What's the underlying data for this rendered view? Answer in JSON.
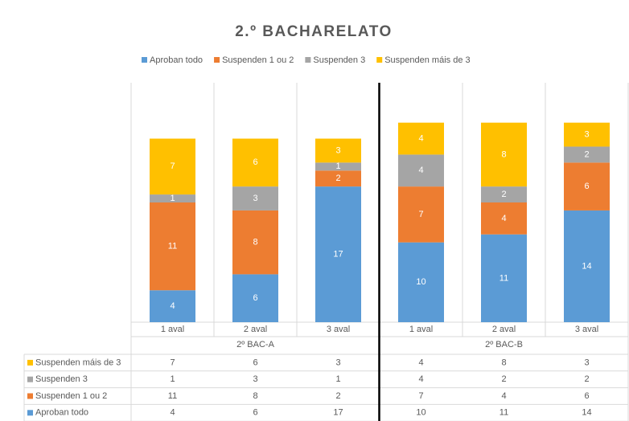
{
  "chart_data": {
    "type": "bar",
    "stacked": true,
    "title": "2.º BACHARELATO",
    "categories": [
      "1 aval",
      "2 aval",
      "3 aval",
      "1 aval",
      "2 aval",
      "3 aval"
    ],
    "groups": [
      "2º BAC-A",
      "2º BAC-B"
    ],
    "series": [
      {
        "name": "Aproban todo",
        "color": "#5b9bd5",
        "values": [
          4,
          6,
          17,
          10,
          11,
          14
        ]
      },
      {
        "name": "Suspenden 1 ou 2",
        "color": "#ed7d31",
        "values": [
          11,
          8,
          2,
          7,
          4,
          6
        ]
      },
      {
        "name": "Suspenden 3",
        "color": "#a5a5a5",
        "values": [
          1,
          3,
          1,
          4,
          2,
          2
        ]
      },
      {
        "name": "Suspenden máis de 3",
        "color": "#ffc000",
        "values": [
          7,
          6,
          3,
          4,
          8,
          3
        ]
      }
    ],
    "ylim": [
      0,
      30
    ],
    "legend": "top",
    "data_table": true
  }
}
